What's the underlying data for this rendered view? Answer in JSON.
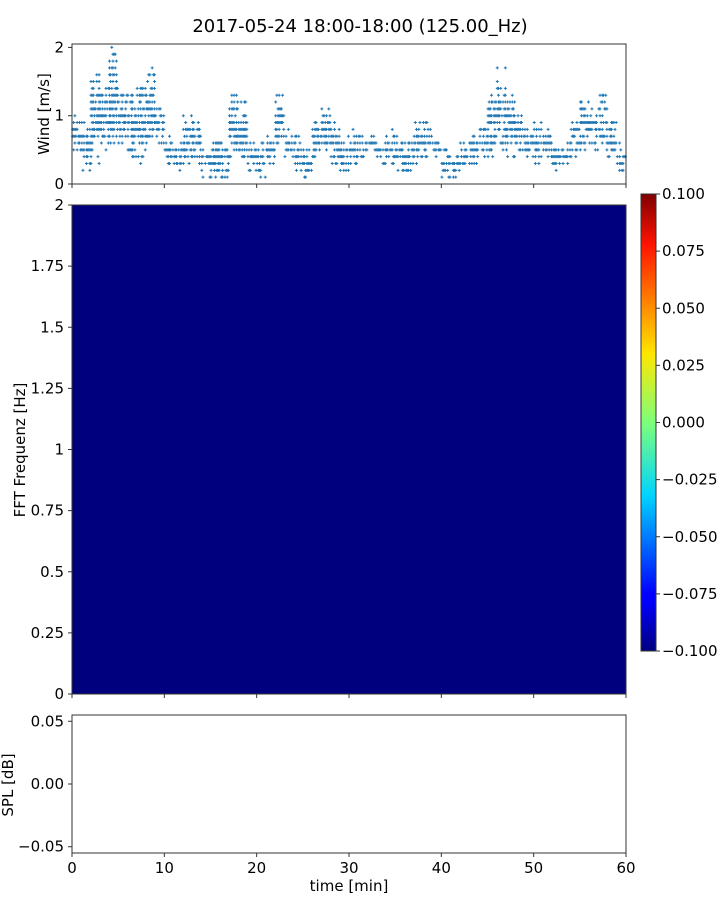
{
  "chart_data": [
    {
      "type": "scatter",
      "title": "2017-05-24 18:00-18:00 (125.00_Hz)",
      "ylabel": "Wind [m/s]",
      "ylim": [
        0,
        2.05
      ],
      "xlim": [
        0,
        60
      ],
      "yticks": [
        "0",
        "1",
        "2"
      ],
      "marker": "+",
      "color": "#1f77b4",
      "wind_range_per_minute": [
        [
          0.5,
          1.0
        ],
        [
          0.2,
          0.9
        ],
        [
          0.3,
          1.7
        ],
        [
          0.5,
          1.4
        ],
        [
          0.6,
          2.0
        ],
        [
          0.6,
          1.3
        ],
        [
          0.4,
          1.3
        ],
        [
          0.3,
          1.4
        ],
        [
          0.6,
          1.7
        ],
        [
          0.6,
          1.1
        ],
        [
          0.3,
          0.7
        ],
        [
          0.1,
          0.6
        ],
        [
          0.3,
          1.0
        ],
        [
          0.3,
          0.9
        ],
        [
          0.1,
          0.5
        ],
        [
          0.1,
          0.7
        ],
        [
          0.1,
          0.6
        ],
        [
          0.4,
          1.3
        ],
        [
          0.3,
          1.2
        ],
        [
          0.2,
          0.6
        ],
        [
          0.1,
          0.6
        ],
        [
          0.3,
          0.7
        ],
        [
          0.5,
          1.3
        ],
        [
          0.4,
          0.8
        ],
        [
          0.2,
          0.7
        ],
        [
          0.1,
          0.5
        ],
        [
          0.4,
          0.9
        ],
        [
          0.5,
          1.1
        ],
        [
          0.3,
          0.9
        ],
        [
          0.1,
          0.7
        ],
        [
          0.3,
          0.8
        ],
        [
          0.4,
          0.7
        ],
        [
          0.5,
          0.7
        ],
        [
          0.3,
          0.6
        ],
        [
          0.3,
          0.8
        ],
        [
          0.2,
          0.7
        ],
        [
          0.1,
          0.6
        ],
        [
          0.3,
          0.9
        ],
        [
          0.4,
          0.9
        ],
        [
          0.4,
          0.7
        ],
        [
          0.1,
          0.5
        ],
        [
          0.1,
          0.4
        ],
        [
          0.2,
          0.6
        ],
        [
          0.3,
          0.7
        ],
        [
          0.4,
          0.9
        ],
        [
          0.4,
          1.3
        ],
        [
          0.5,
          1.7
        ],
        [
          0.4,
          1.3
        ],
        [
          0.5,
          1.0
        ],
        [
          0.4,
          0.8
        ],
        [
          0.3,
          0.9
        ],
        [
          0.4,
          0.8
        ],
        [
          0.2,
          0.6
        ],
        [
          0.3,
          0.6
        ],
        [
          0.4,
          0.9
        ],
        [
          0.5,
          1.3
        ],
        [
          0.5,
          1.1
        ],
        [
          0.5,
          1.3
        ],
        [
          0.3,
          0.9
        ],
        [
          0.2,
          0.6
        ]
      ]
    },
    {
      "type": "heatmap",
      "ylabel": "FFT Frequenz [Hz]",
      "ylim": [
        0,
        2
      ],
      "xlim": [
        0,
        60
      ],
      "yticks": [
        "0",
        "0.25",
        "0.5",
        "0.75",
        "1",
        "1.25",
        "1.5",
        "1.75",
        "2"
      ],
      "fill_value": -0.1,
      "fill_color": "#00007f",
      "colormap": "jet",
      "colorbar": {
        "range": [
          -0.1,
          0.1
        ],
        "ticks": [
          "0.100",
          "0.075",
          "0.050",
          "0.025",
          "0.000",
          "−0.025",
          "−0.050",
          "−0.075",
          "−0.100"
        ]
      }
    },
    {
      "type": "line",
      "ylabel": "SPL [dB]",
      "xlabel": "time [min]",
      "ylim": [
        -0.055,
        0.055
      ],
      "xlim": [
        0,
        60
      ],
      "yticks": [
        "0.05",
        "0.00",
        "−0.05"
      ],
      "xticks": [
        "0",
        "10",
        "20",
        "30",
        "40",
        "50",
        "60"
      ],
      "values": []
    }
  ]
}
